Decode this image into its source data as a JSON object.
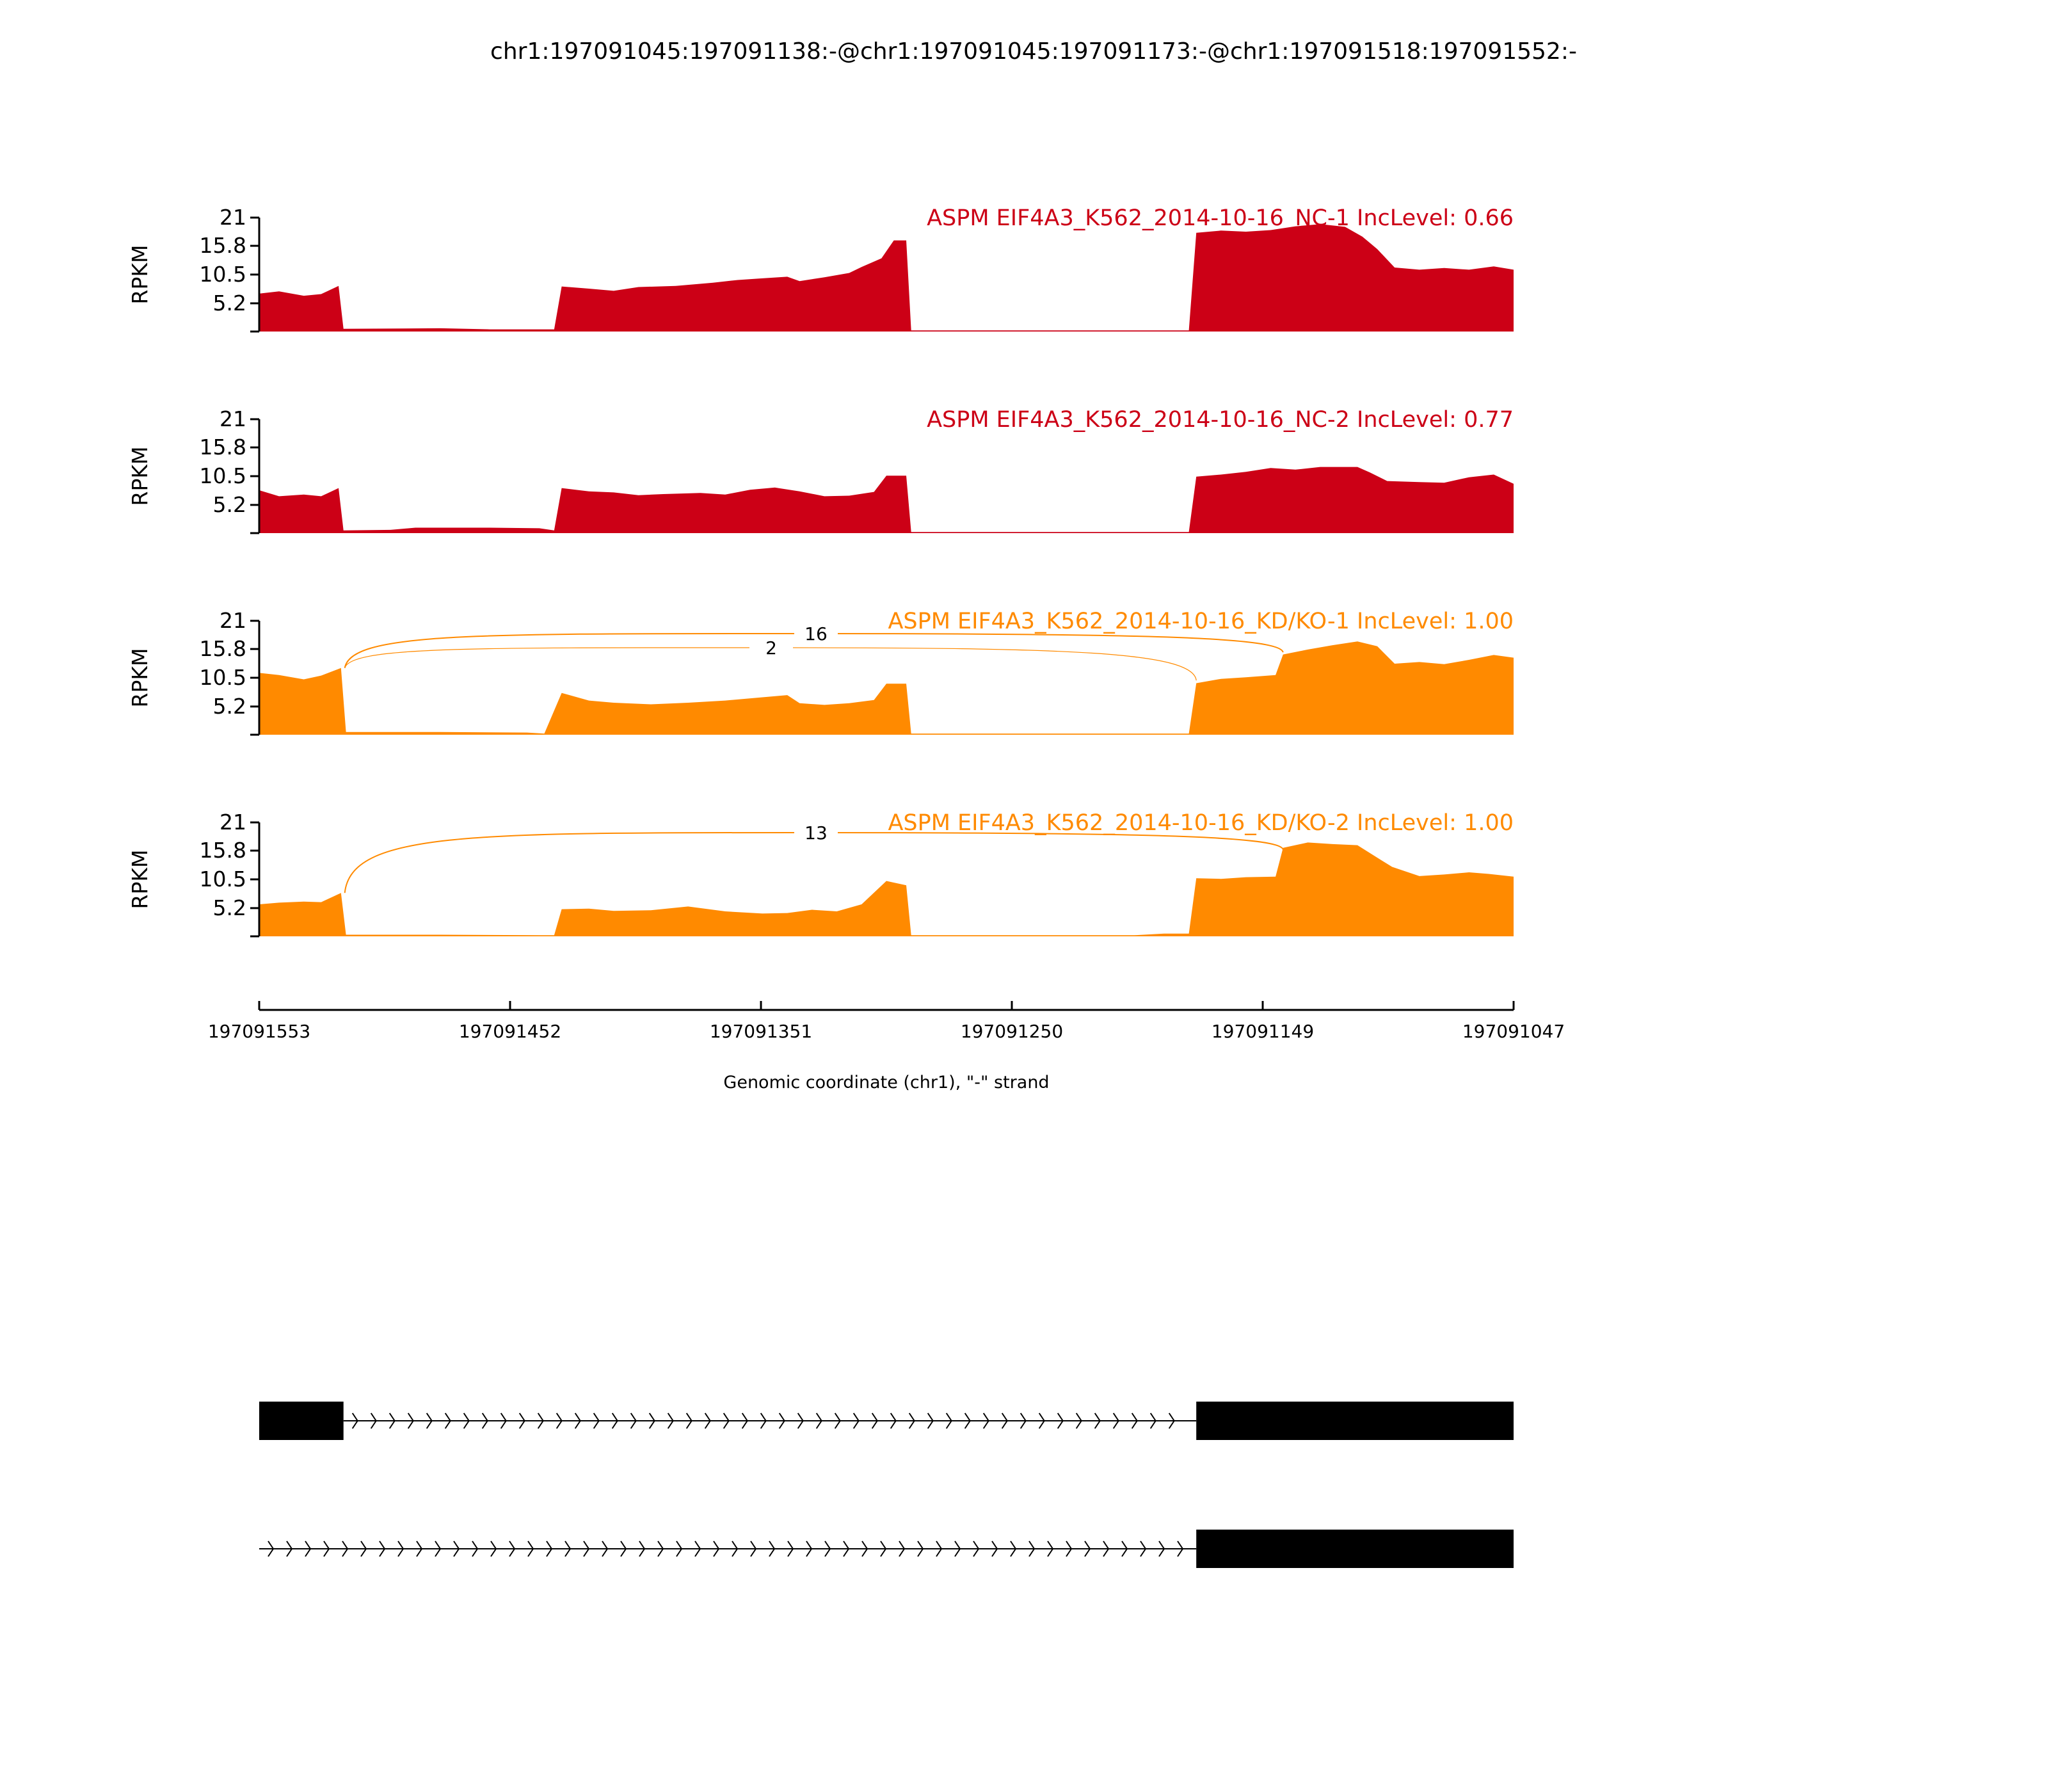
{
  "title": "chr1:197091045:197091138:-@chr1:197091045:197091173:-@chr1:197091518:197091552:-",
  "colors": {
    "nc": "#cc0016",
    "kd": "#ff8a00",
    "axis": "#000000"
  },
  "chart_data": {
    "type": "area",
    "ylabel": "RPKM",
    "yticks": [
      5.2,
      10.5,
      15.8,
      21
    ],
    "ylim": [
      0,
      21
    ],
    "xlabel": "Genomic coordinate (chr1), \"-\" strand",
    "xticks": [
      "197091553",
      "197091452",
      "197091351",
      "197091250",
      "197091149",
      "197091047"
    ],
    "x_range": [
      197091553,
      197091047
    ],
    "series": [
      {
        "name": "ASPM EIF4A3_K562_2014-10-16_NC-1 IncLevel: 0.66",
        "color": "#cc0016",
        "coverage": [
          [
            197091553,
            7.0
          ],
          [
            197091545,
            7.4
          ],
          [
            197091535,
            6.6
          ],
          [
            197091528,
            6.9
          ],
          [
            197091521,
            8.4
          ],
          [
            197091519,
            0.5
          ],
          [
            197091480,
            0.6
          ],
          [
            197091460,
            0.4
          ],
          [
            197091434,
            0.4
          ],
          [
            197091431,
            8.3
          ],
          [
            197091420,
            7.9
          ],
          [
            197091410,
            7.5
          ],
          [
            197091400,
            8.2
          ],
          [
            197091385,
            8.4
          ],
          [
            197091370,
            9.0
          ],
          [
            197091360,
            9.5
          ],
          [
            197091350,
            9.8
          ],
          [
            197091340,
            10.1
          ],
          [
            197091335,
            9.3
          ],
          [
            197091325,
            10.0
          ],
          [
            197091315,
            10.8
          ],
          [
            197091310,
            11.9
          ],
          [
            197091302,
            13.5
          ],
          [
            197091297,
            16.8
          ],
          [
            197091292,
            16.8
          ],
          [
            197091290,
            0.2
          ],
          [
            197091178,
            0.2
          ],
          [
            197091175,
            18.2
          ],
          [
            197091165,
            18.6
          ],
          [
            197091155,
            18.4
          ],
          [
            197091145,
            18.7
          ],
          [
            197091135,
            19.4
          ],
          [
            197091125,
            19.8
          ],
          [
            197091115,
            19.3
          ],
          [
            197091108,
            17.5
          ],
          [
            197091102,
            15.2
          ],
          [
            197091095,
            11.8
          ],
          [
            197091085,
            11.4
          ],
          [
            197091075,
            11.7
          ],
          [
            197091065,
            11.4
          ],
          [
            197091055,
            12.0
          ],
          [
            197091047,
            11.4
          ]
        ]
      },
      {
        "name": "ASPM EIF4A3_K562_2014-10-16_NC-2 IncLevel: 0.77",
        "color": "#cc0016",
        "coverage": [
          [
            197091553,
            7.9
          ],
          [
            197091545,
            6.8
          ],
          [
            197091535,
            7.1
          ],
          [
            197091528,
            6.8
          ],
          [
            197091521,
            8.3
          ],
          [
            197091519,
            0.5
          ],
          [
            197091500,
            0.6
          ],
          [
            197091490,
            1.0
          ],
          [
            197091460,
            1.0
          ],
          [
            197091440,
            0.9
          ],
          [
            197091434,
            0.5
          ],
          [
            197091431,
            8.3
          ],
          [
            197091420,
            7.7
          ],
          [
            197091410,
            7.5
          ],
          [
            197091400,
            7.0
          ],
          [
            197091390,
            7.2
          ],
          [
            197091375,
            7.4
          ],
          [
            197091365,
            7.1
          ],
          [
            197091355,
            8.0
          ],
          [
            197091345,
            8.4
          ],
          [
            197091335,
            7.7
          ],
          [
            197091325,
            6.8
          ],
          [
            197091315,
            6.9
          ],
          [
            197091305,
            7.6
          ],
          [
            197091300,
            10.6
          ],
          [
            197091292,
            10.6
          ],
          [
            197091290,
            0.2
          ],
          [
            197091178,
            0.2
          ],
          [
            197091175,
            10.4
          ],
          [
            197091165,
            10.8
          ],
          [
            197091155,
            11.3
          ],
          [
            197091145,
            12.0
          ],
          [
            197091135,
            11.7
          ],
          [
            197091125,
            12.2
          ],
          [
            197091110,
            12.2
          ],
          [
            197091105,
            11.2
          ],
          [
            197091098,
            9.6
          ],
          [
            197091085,
            9.4
          ],
          [
            197091075,
            9.3
          ],
          [
            197091065,
            10.3
          ],
          [
            197091055,
            10.8
          ],
          [
            197091047,
            9.1
          ]
        ]
      },
      {
        "name": "ASPM EIF4A3_K562_2014-10-16_KD/KO-1 IncLevel: 1.00",
        "color": "#ff8a00",
        "coverage": [
          [
            197091553,
            11.4
          ],
          [
            197091545,
            11.0
          ],
          [
            197091535,
            10.2
          ],
          [
            197091528,
            10.9
          ],
          [
            197091520,
            12.3
          ],
          [
            197091518,
            0.5
          ],
          [
            197091480,
            0.5
          ],
          [
            197091445,
            0.4
          ],
          [
            197091438,
            0.2
          ],
          [
            197091431,
            7.7
          ],
          [
            197091420,
            6.3
          ],
          [
            197091410,
            5.9
          ],
          [
            197091395,
            5.6
          ],
          [
            197091380,
            5.9
          ],
          [
            197091365,
            6.3
          ],
          [
            197091350,
            6.9
          ],
          [
            197091340,
            7.3
          ],
          [
            197091335,
            5.8
          ],
          [
            197091325,
            5.5
          ],
          [
            197091315,
            5.8
          ],
          [
            197091305,
            6.4
          ],
          [
            197091300,
            9.4
          ],
          [
            197091292,
            9.4
          ],
          [
            197091290,
            0.2
          ],
          [
            197091178,
            0.2
          ],
          [
            197091175,
            9.5
          ],
          [
            197091165,
            10.3
          ],
          [
            197091155,
            10.6
          ],
          [
            197091143,
            11.0
          ],
          [
            197091140,
            14.8
          ],
          [
            197091130,
            15.7
          ],
          [
            197091120,
            16.5
          ],
          [
            197091110,
            17.2
          ],
          [
            197091102,
            16.3
          ],
          [
            197091095,
            13.1
          ],
          [
            197091085,
            13.4
          ],
          [
            197091075,
            13.0
          ],
          [
            197091065,
            13.8
          ],
          [
            197091055,
            14.7
          ],
          [
            197091047,
            14.2
          ]
        ]
      },
      {
        "name": "ASPM EIF4A3_K562_2014-10-16_KD/KO-2 IncLevel: 1.00",
        "color": "#ff8a00",
        "coverage": [
          [
            197091553,
            5.9
          ],
          [
            197091545,
            6.2
          ],
          [
            197091535,
            6.4
          ],
          [
            197091528,
            6.3
          ],
          [
            197091520,
            8.0
          ],
          [
            197091518,
            0.3
          ],
          [
            197091480,
            0.3
          ],
          [
            197091440,
            0.2
          ],
          [
            197091434,
            0.2
          ],
          [
            197091431,
            5.0
          ],
          [
            197091420,
            5.1
          ],
          [
            197091410,
            4.7
          ],
          [
            197091395,
            4.8
          ],
          [
            197091380,
            5.5
          ],
          [
            197091365,
            4.6
          ],
          [
            197091350,
            4.2
          ],
          [
            197091340,
            4.3
          ],
          [
            197091330,
            4.9
          ],
          [
            197091320,
            4.6
          ],
          [
            197091310,
            5.9
          ],
          [
            197091300,
            10.2
          ],
          [
            197091292,
            9.4
          ],
          [
            197091290,
            0.2
          ],
          [
            197091200,
            0.2
          ],
          [
            197091188,
            0.5
          ],
          [
            197091178,
            0.5
          ],
          [
            197091175,
            10.7
          ],
          [
            197091165,
            10.6
          ],
          [
            197091155,
            10.9
          ],
          [
            197091143,
            11.0
          ],
          [
            197091140,
            16.3
          ],
          [
            197091130,
            17.3
          ],
          [
            197091120,
            17.0
          ],
          [
            197091110,
            16.8
          ],
          [
            197091102,
            14.5
          ],
          [
            197091096,
            12.8
          ],
          [
            197091085,
            11.1
          ],
          [
            197091075,
            11.4
          ],
          [
            197091065,
            11.8
          ],
          [
            197091057,
            11.5
          ],
          [
            197091047,
            11.0
          ]
        ]
      }
    ],
    "junctions": [
      {
        "track": 2,
        "from": 197091519,
        "to": 197091140,
        "label": "16"
      },
      {
        "track": 2,
        "from": 197091519,
        "to": 197091175,
        "label": "2"
      },
      {
        "track": 3,
        "from": 197091519,
        "to": 197091140,
        "label": "13"
      }
    ],
    "isoforms": [
      {
        "exons": [
          [
            197091553,
            197091519
          ],
          [
            197091175,
            197091047
          ]
        ],
        "intron": [
          197091519,
          197091175
        ]
      },
      {
        "exons": [
          [
            197091175,
            197091047
          ]
        ],
        "intron": [
          197091553,
          197091175
        ]
      }
    ]
  }
}
